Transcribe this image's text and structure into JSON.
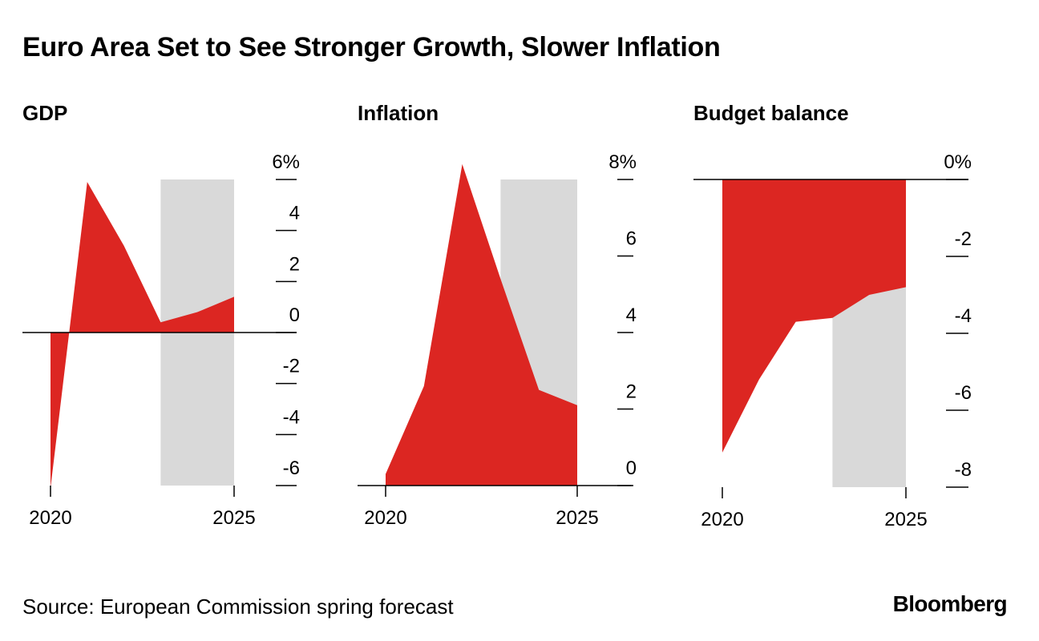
{
  "title": "Euro Area Set to See Stronger Growth, Slower Inflation",
  "source": "Source: European Commission spring forecast",
  "brand": "Bloomberg",
  "colors": {
    "area": "#dc2622",
    "forecast_band": "#d9d9d9",
    "axis": "#000000"
  },
  "chart_data": [
    {
      "type": "area",
      "title": "GDP",
      "x": [
        2020,
        2021,
        2022,
        2023,
        2024,
        2025
      ],
      "values": [
        -6.1,
        5.9,
        3.4,
        0.4,
        0.8,
        1.4
      ],
      "xlim": [
        2020,
        2025
      ],
      "ylim": [
        -6,
        6
      ],
      "yticks": [
        6,
        4,
        2,
        0,
        -2,
        -4,
        -6
      ],
      "ytick_labels": [
        "6%",
        "4",
        "2",
        "0",
        "-2",
        "-4",
        "-6"
      ],
      "xtick_labels": [
        "2020",
        "2025"
      ],
      "forecast_range": [
        2023,
        2025
      ],
      "baseline": 0
    },
    {
      "type": "area",
      "title": "Inflation",
      "x": [
        2020,
        2021,
        2022,
        2023,
        2024,
        2025
      ],
      "values": [
        0.3,
        2.6,
        8.4,
        5.4,
        2.5,
        2.1
      ],
      "xlim": [
        2020,
        2025
      ],
      "ylim": [
        0,
        8
      ],
      "yticks": [
        8,
        6,
        4,
        2,
        0
      ],
      "ytick_labels": [
        "8%",
        "6",
        "4",
        "2",
        "0"
      ],
      "xtick_labels": [
        "2020",
        "2025"
      ],
      "forecast_range": [
        2023,
        2025
      ],
      "baseline": 0
    },
    {
      "type": "area",
      "title": "Budget balance",
      "x": [
        2020,
        2021,
        2022,
        2023,
        2024,
        2025
      ],
      "values": [
        -7.1,
        -5.2,
        -3.7,
        -3.6,
        -3.0,
        -2.8
      ],
      "xlim": [
        2020,
        2025
      ],
      "ylim": [
        -8,
        0
      ],
      "yticks": [
        0,
        -2,
        -4,
        -6,
        -8
      ],
      "ytick_labels": [
        "0%",
        "-2",
        "-4",
        "-6",
        "-8"
      ],
      "xtick_labels": [
        "2020",
        "2025"
      ],
      "forecast_range": [
        2023,
        2025
      ],
      "baseline": 0
    }
  ]
}
